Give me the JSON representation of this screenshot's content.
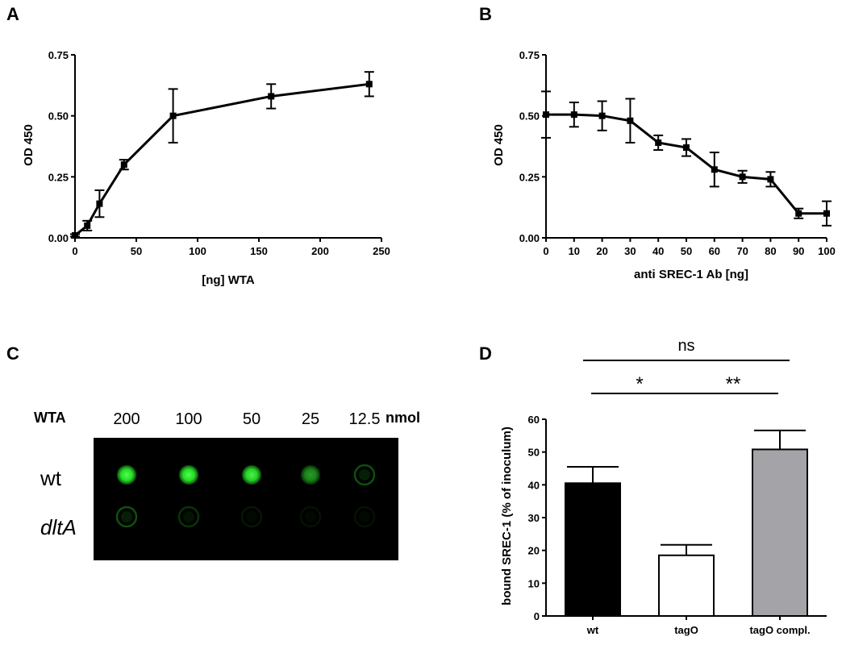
{
  "chart_data": [
    {
      "panel": "A",
      "type": "line",
      "xlabel": "[ng] WTA",
      "ylabel": "OD 450",
      "xlim": [
        0,
        250
      ],
      "ylim": [
        0,
        0.75
      ],
      "xticks": [
        "0",
        "50",
        "100",
        "150",
        "200",
        "250"
      ],
      "yticks": [
        "0.00",
        "0.25",
        "0.50",
        "0.75"
      ],
      "x": [
        0,
        10,
        20,
        40,
        80,
        160,
        240
      ],
      "y": [
        0.01,
        0.05,
        0.14,
        0.3,
        0.5,
        0.58,
        0.63
      ],
      "error": [
        0.005,
        0.02,
        0.055,
        0.02,
        0.11,
        0.05,
        0.05
      ],
      "grid": false,
      "legend": "none"
    },
    {
      "panel": "B",
      "type": "line",
      "xlabel": "anti SREC-1 Ab [ng]",
      "ylabel": "OD 450",
      "xlim": [
        0,
        100
      ],
      "ylim": [
        0,
        0.75
      ],
      "xticks": [
        "0",
        "10",
        "20",
        "30",
        "40",
        "50",
        "60",
        "70",
        "80",
        "90",
        "100"
      ],
      "yticks": [
        "0.00",
        "0.25",
        "0.50",
        "0.75"
      ],
      "x": [
        0,
        10,
        20,
        30,
        40,
        50,
        60,
        70,
        80,
        90,
        100
      ],
      "y": [
        0.505,
        0.505,
        0.5,
        0.48,
        0.39,
        0.37,
        0.28,
        0.25,
        0.24,
        0.1,
        0.1
      ],
      "error": [
        0.095,
        0.05,
        0.06,
        0.09,
        0.03,
        0.035,
        0.07,
        0.025,
        0.03,
        0.02,
        0.05
      ],
      "grid": false,
      "legend": "none"
    },
    {
      "panel": "D",
      "type": "bar",
      "categories": [
        "wt",
        "tagO",
        "tagO compl."
      ],
      "values": [
        40.5,
        18.5,
        50.8
      ],
      "error": [
        5.0,
        3.2,
        5.8
      ],
      "bar_colors": [
        "#000000",
        "#ffffff",
        "#a4a4a8"
      ],
      "ylabel": "bound SREC-1 (% of inoculum)",
      "ylim": [
        0,
        60
      ],
      "yticks": [
        "0",
        "10",
        "20",
        "30",
        "40",
        "50",
        "60"
      ],
      "significance": [
        {
          "from": "wt",
          "to": "tagO",
          "label": "*"
        },
        {
          "from": "tagO",
          "to": "tagO compl.",
          "label": "**"
        },
        {
          "from": "wt",
          "to": "tagO compl.",
          "label": "ns"
        }
      ],
      "grid": false,
      "legend": "none"
    }
  ],
  "blot": {
    "panel": "C",
    "header_label": "WTA",
    "concentrations": [
      "200",
      "100",
      "50",
      "25",
      "12.5"
    ],
    "unit": "nmol",
    "rows": [
      {
        "label": "wt",
        "intensity": [
          1.0,
          1.0,
          0.95,
          0.6,
          0.35
        ]
      },
      {
        "label": "dltA",
        "intensity": [
          0.35,
          0.22,
          0.1,
          0.06,
          0.03
        ]
      }
    ],
    "spot_color": "#28e628",
    "background_color": "#000000"
  }
}
